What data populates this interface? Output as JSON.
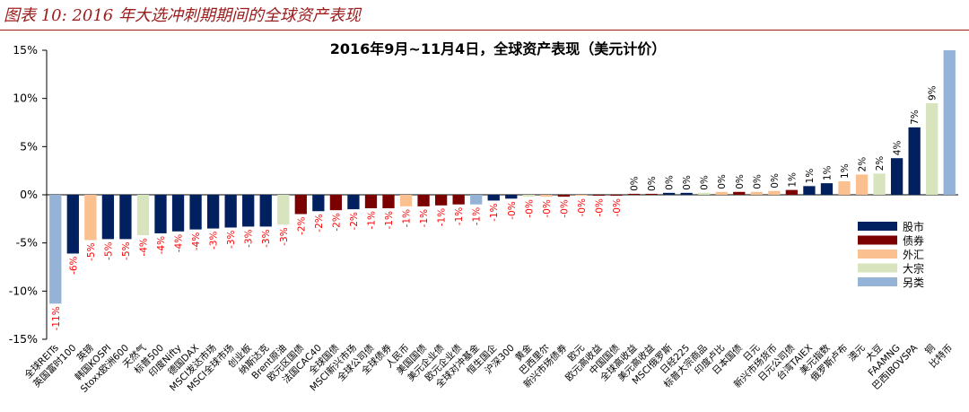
{
  "figure_title": "图表 10: 2016 年大选冲刺期期间的全球资产表现",
  "chart_data": {
    "type": "bar",
    "title": "2016年9月~11月4日，全球资产表现（美元计价）",
    "ylim": [
      -15,
      15
    ],
    "yticks": [
      "15%",
      "10%",
      "5%",
      "0%",
      "-5%",
      "-10%",
      "-15%"
    ],
    "grid": false,
    "legend_position": "right",
    "colors": {
      "股市": "#002060",
      "债券": "#7b0000",
      "外汇": "#fac090",
      "大宗": "#d7e4bd",
      "另类": "#95b3d7",
      "positive_label": "#000000",
      "negative_label": "#ff0000"
    },
    "legend": [
      "股市",
      "债券",
      "外汇",
      "大宗",
      "另类"
    ],
    "categories": [
      "全球REITs",
      "英国富时100",
      "英镑",
      "韩国KOSPI",
      "Stoxx欧洲600",
      "天然气",
      "标普500",
      "印度Nifty",
      "德国DAX",
      "MSCI发达市场",
      "MSCI全球市场",
      "创业板",
      "纳斯达克",
      "Brent原油",
      "欧元区国债",
      "法国CAC40",
      "全球国债",
      "MSCI新兴市场",
      "全球公司债",
      "全球债券",
      "人民币",
      "美国国债",
      "美元企业债",
      "欧元企业债",
      "全球对冲基金",
      "恒生国企",
      "沪深300",
      "黄金",
      "巴西里尔",
      "新兴市场债券",
      "欧元",
      "欧元高收益",
      "中国国债",
      "全球高收益",
      "美元高收益",
      "MSCI俄罗斯",
      "日经225",
      "标普大宗商品",
      "印度卢比",
      "日本国债",
      "日元",
      "新兴市场货币",
      "日元公司债",
      "台湾TAIEX",
      "美元指数",
      "俄罗斯卢布",
      "澳元",
      "大豆",
      "FAAMNG",
      "巴西IBOVSPA",
      "铜",
      "比特币"
    ],
    "asset_class": [
      "另类",
      "股市",
      "外汇",
      "股市",
      "股市",
      "大宗",
      "股市",
      "股市",
      "股市",
      "股市",
      "股市",
      "股市",
      "股市",
      "大宗",
      "债券",
      "股市",
      "债券",
      "股市",
      "债券",
      "债券",
      "外汇",
      "债券",
      "债券",
      "债券",
      "另类",
      "股市",
      "股市",
      "大宗",
      "外汇",
      "债券",
      "外汇",
      "债券",
      "债券",
      "债券",
      "债券",
      "股市",
      "股市",
      "大宗",
      "外汇",
      "债券",
      "外汇",
      "外汇",
      "债券",
      "股市",
      "股市",
      "外汇",
      "外汇",
      "大宗",
      "股市",
      "股市",
      "大宗",
      "另类"
    ],
    "values": [
      -11.3,
      -6.1,
      -4.7,
      -4.6,
      -4.6,
      -4.2,
      -4.0,
      -3.8,
      -3.6,
      -3.5,
      -3.4,
      -3.3,
      -3.3,
      -3.1,
      -2.0,
      -1.7,
      -1.6,
      -1.5,
      -1.4,
      -1.4,
      -1.2,
      -1.2,
      -1.1,
      -1.0,
      -1.0,
      -0.6,
      -0.4,
      -0.2,
      -0.2,
      -0.2,
      -0.1,
      -0.1,
      -0.1,
      0.1,
      0.1,
      0.2,
      0.2,
      0.2,
      0.3,
      0.3,
      0.3,
      0.4,
      0.5,
      0.9,
      1.2,
      1.4,
      2.1,
      2.2,
      3.8,
      7.0,
      9.5,
      15.0
    ],
    "data_labels": [
      "-11%",
      "-6%",
      "-5%",
      "-5%",
      "-5%",
      "-4%",
      "-4%",
      "-4%",
      "-4%",
      "-3%",
      "-3%",
      "-3%",
      "-3%",
      "-3%",
      "-2%",
      "-2%",
      "-2%",
      "-2%",
      "-1%",
      "-1%",
      "-1%",
      "-1%",
      "-1%",
      "-1%",
      "-1%",
      "-1%",
      "-0%",
      "-0%",
      "-0%",
      "-0%",
      "-0%",
      "-0%",
      "-0%",
      "0%",
      "0%",
      "0%",
      "0%",
      "0%",
      "0%",
      "0%",
      "0%",
      "0%",
      "1%",
      "1%",
      "1%",
      "1%",
      "2%",
      "2%",
      "4%",
      "7%",
      "9%",
      ""
    ]
  }
}
